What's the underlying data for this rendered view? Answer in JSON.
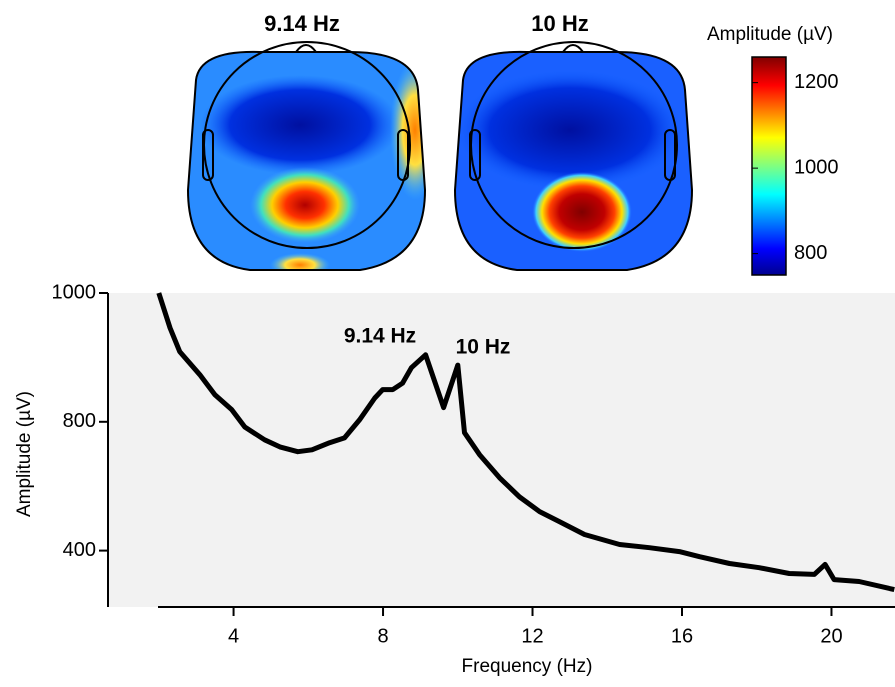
{
  "chart_data": [
    {
      "type": "topomap",
      "titles": [
        "9.14 Hz",
        "10 Hz"
      ],
      "colorbar_label": "Amplitude (µV)",
      "clim": [
        750,
        1260
      ],
      "cticks": [
        800,
        1000,
        1200
      ]
    },
    {
      "type": "line",
      "xlabel": "Frequency (Hz)",
      "ylabel": "Amplitude (µV)",
      "annotations": [
        "9.14 Hz",
        "10 Hz"
      ],
      "color": "#000000",
      "x": [
        2,
        2.3,
        2.56,
        3.1,
        3.5,
        3.95,
        4.3,
        4.83,
        5.24,
        5.72,
        6.1,
        6.57,
        6.97,
        7.37,
        7.78,
        7.99,
        8.26,
        8.52,
        8.76,
        9.14,
        9.62,
        10,
        10.18,
        10.58,
        11.12,
        11.65,
        12.19,
        12.72,
        13.39,
        14.33,
        15.13,
        15.93,
        16.47,
        17.27,
        18.07,
        18.87,
        19.54,
        19.83,
        20.07,
        20.74,
        21.68
      ],
      "values": [
        1000,
        946,
        909,
        873,
        842,
        819,
        784,
        744,
        722,
        707,
        713,
        735,
        750,
        803,
        837,
        850,
        850,
        860,
        884,
        904,
        822,
        888,
        766,
        698,
        626,
        567,
        521,
        490,
        450,
        419,
        409,
        397,
        381,
        360,
        347,
        329,
        326,
        357,
        310,
        304,
        279
      ],
      "xlim": [
        0.64,
        21.7
      ],
      "ylim": [
        200,
        1000
      ],
      "xticks": [
        4,
        8,
        12,
        16,
        20
      ],
      "yticks": [
        1000,
        800,
        400
      ],
      "background": "#f2f2f2"
    }
  ]
}
